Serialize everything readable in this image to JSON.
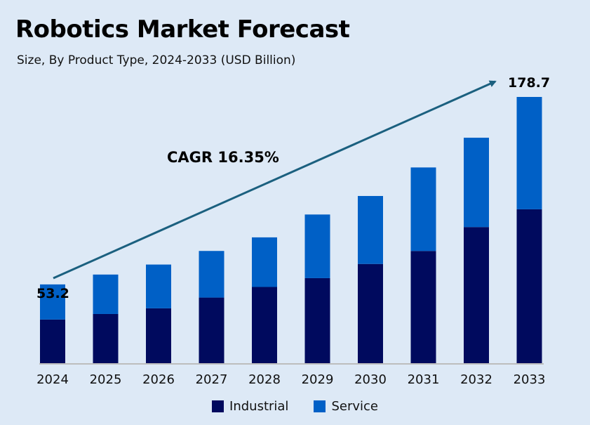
{
  "title": "Robotics Market Forecast",
  "subtitle": "Size, By Product Type, 2024-2033 (USD Billion)",
  "chart_data": {
    "type": "bar",
    "stacked": true,
    "categories": [
      "2024",
      "2025",
      "2026",
      "2027",
      "2028",
      "2029",
      "2030",
      "2031",
      "2032",
      "2033"
    ],
    "series": [
      {
        "name": "Industrial",
        "color": "#000a5e",
        "values": [
          29.7,
          33.4,
          37.2,
          44.4,
          51.5,
          57.4,
          66.9,
          75.6,
          91.6,
          103.5
        ]
      },
      {
        "name": "Service",
        "color": "#0060c6",
        "values": [
          23.5,
          26.4,
          29.3,
          31.2,
          33.2,
          42.6,
          45.5,
          55.9,
          59.8,
          75.2
        ]
      }
    ],
    "data_labels": {
      "first": "53.2",
      "last": "178.7"
    },
    "annotation": "CAGR 16.35%",
    "ylim": [
      0,
      178.7
    ],
    "grid": false,
    "legend": "bottom",
    "arrow_color": "#1b607f",
    "background": "#dde9f6"
  }
}
